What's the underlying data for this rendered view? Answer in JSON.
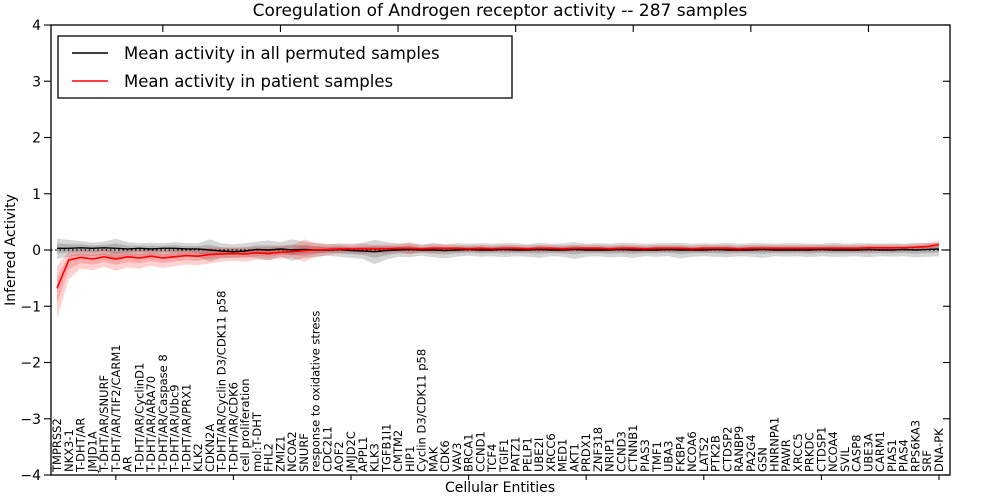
{
  "chart_data": {
    "type": "line",
    "title": "Coregulation of Androgen receptor activity -- 287 samples",
    "xlabel": "Cellular Entities",
    "ylabel": "Inferred Activity",
    "ylim": [
      -4,
      4
    ],
    "yticks": [
      -4,
      -3,
      -2,
      -1,
      0,
      1,
      2,
      3,
      4
    ],
    "grid": false,
    "legend_position": "upper left",
    "zero_line": {
      "style": "dotted",
      "color": "#000000",
      "y": 0
    },
    "categories": [
      "TMPRSS2",
      "NKX3-1",
      "T-DHT/AR",
      "JMJD1A",
      "T-DHT/AR/SNURF",
      "T-DHT/AR/TIF2/CARM1",
      "AR",
      "T-DHT/AR/CyclinD1",
      "T-DHT/AR/ARA70",
      "T-DHT/AR/Caspase 8",
      "T-DHT/AR/Ubc9",
      "T-DHT/AR/PRX1",
      "KLK2",
      "CDKN2A",
      "T-DHT/AR/Cyclin D3/CDK11 p58",
      "T-DHT/AR/CDK6",
      "cell proliferation",
      "mol:T-DHT",
      "FHL2",
      "ZMIZ1",
      "NCOA2",
      "SNURF",
      "response to oxidative stress",
      "CDC2L1",
      "AOF2",
      "JMJD2C",
      "APPL1",
      "KLK3",
      "TGFB1I1",
      "CMTM2",
      "HIP1",
      "Cyclin D3/CDK11 p58",
      "MAK",
      "CDK6",
      "VAV3",
      "BRCA1",
      "CCND1",
      "TCF4",
      "TGIF1",
      "PATZ1",
      "PELP1",
      "UBE2I",
      "XRCC6",
      "MED1",
      "AKT1",
      "PRDX1",
      "ZNF318",
      "NRIP1",
      "CCND3",
      "CTNNB1",
      "PIAS3",
      "TMF1",
      "UBA3",
      "FKBP4",
      "NCOA6",
      "LATS2",
      "PTK2B",
      "CTDSP2",
      "RANBP9",
      "PA2G4",
      "GSN",
      "HNRNPA1",
      "PAWR",
      "XRCC5",
      "PRKDC",
      "CTDSP1",
      "NCOA4",
      "SVIL",
      "CASP8",
      "UBE3A",
      "CARM1",
      "PIAS1",
      "PIAS4",
      "RPS6KA3",
      "SRF",
      "DNA-PK"
    ],
    "series": [
      {
        "name": "Mean activity in all permuted samples",
        "color": "#000000",
        "band_color_rgb": "0,0,0",
        "band_alpha": 0.16,
        "values": [
          0.03,
          0.03,
          0.04,
          0.03,
          0.04,
          0.03,
          0.02,
          0.03,
          0.02,
          0.03,
          0.03,
          0.02,
          0.02,
          0.0,
          -0.02,
          -0.03,
          -0.02,
          0.01,
          0.0,
          0.02,
          0.0,
          0.01,
          0.0,
          0.0,
          0.01,
          -0.01,
          -0.02,
          -0.03,
          -0.01,
          0.0,
          0.01,
          0.0,
          0.0,
          -0.01,
          0.0,
          0.01,
          0.0,
          0.0,
          0.01,
          0.0,
          0.0,
          0.01,
          0.0,
          0.0,
          0.01,
          0.0,
          0.0,
          0.0,
          0.01,
          0.0,
          0.0,
          0.0,
          0.01,
          0.0,
          0.0,
          0.0,
          0.01,
          0.0,
          0.0,
          0.0,
          0.01,
          0.0,
          0.0,
          0.0,
          0.0,
          0.01,
          0.0,
          0.0,
          0.0,
          0.01,
          0.0,
          0.0,
          0.01,
          0.0,
          0.01,
          0.02
        ],
        "band_low": [
          -0.16,
          -0.12,
          -0.1,
          -0.11,
          -0.09,
          -0.18,
          -0.12,
          -0.1,
          -0.11,
          -0.1,
          -0.12,
          -0.1,
          -0.12,
          -0.21,
          -0.14,
          -0.15,
          -0.12,
          -0.15,
          -0.18,
          -0.12,
          -0.19,
          -0.14,
          -0.12,
          -0.1,
          -0.12,
          -0.14,
          -0.16,
          -0.25,
          -0.17,
          -0.12,
          -0.13,
          -0.1,
          -0.13,
          -0.15,
          -0.12,
          -0.1,
          -0.12,
          -0.11,
          -0.13,
          -0.11,
          -0.12,
          -0.14,
          -0.11,
          -0.12,
          -0.16,
          -0.12,
          -0.11,
          -0.13,
          -0.12,
          -0.14,
          -0.11,
          -0.12,
          -0.11,
          -0.15,
          -0.12,
          -0.11,
          -0.12,
          -0.13,
          -0.11,
          -0.12,
          -0.14,
          -0.11,
          -0.12,
          -0.11,
          -0.13,
          -0.11,
          -0.12,
          -0.12,
          -0.11,
          -0.13,
          -0.11,
          -0.12,
          -0.11,
          -0.13,
          -0.12,
          -0.11
        ],
        "band_high": [
          0.2,
          0.18,
          0.16,
          0.13,
          0.15,
          0.2,
          0.14,
          0.12,
          0.13,
          0.12,
          0.14,
          0.12,
          0.12,
          0.19,
          0.12,
          0.1,
          0.12,
          0.15,
          0.17,
          0.14,
          0.19,
          0.15,
          0.12,
          0.1,
          0.12,
          0.11,
          0.13,
          0.18,
          0.14,
          0.12,
          0.12,
          0.1,
          0.12,
          0.1,
          0.12,
          0.11,
          0.12,
          0.11,
          0.12,
          0.12,
          0.1,
          0.13,
          0.11,
          0.12,
          0.14,
          0.11,
          0.12,
          0.11,
          0.13,
          0.12,
          0.11,
          0.12,
          0.12,
          0.13,
          0.11,
          0.12,
          0.11,
          0.13,
          0.11,
          0.12,
          0.12,
          0.11,
          0.12,
          0.12,
          0.11,
          0.11,
          0.13,
          0.11,
          0.12,
          0.12,
          0.11,
          0.12,
          0.11,
          0.12,
          0.13,
          0.12
        ]
      },
      {
        "name": "Mean activity in patient samples",
        "color": "#ff0000",
        "band_color_rgb": "255,0,0",
        "band_alpha": 0.18,
        "values": [
          -0.68,
          -0.18,
          -0.13,
          -0.16,
          -0.12,
          -0.16,
          -0.12,
          -0.14,
          -0.11,
          -0.14,
          -0.12,
          -0.1,
          -0.11,
          -0.08,
          -0.07,
          -0.06,
          -0.07,
          -0.05,
          -0.06,
          -0.04,
          -0.03,
          -0.01,
          0.0,
          0.01,
          0.02,
          0.02,
          0.02,
          0.02,
          0.02,
          0.03,
          0.03,
          0.02,
          0.03,
          0.03,
          0.03,
          0.02,
          0.03,
          0.02,
          0.03,
          0.03,
          0.02,
          0.03,
          0.03,
          0.02,
          0.03,
          0.03,
          0.03,
          0.02,
          0.03,
          0.03,
          0.02,
          0.03,
          0.03,
          0.03,
          0.02,
          0.03,
          0.03,
          0.03,
          0.02,
          0.03,
          0.03,
          0.03,
          0.03,
          0.03,
          0.03,
          0.03,
          0.03,
          0.03,
          0.03,
          0.04,
          0.04,
          0.04,
          0.04,
          0.05,
          0.06,
          0.1
        ],
        "band_low": [
          -1.22,
          -0.52,
          -0.33,
          -0.36,
          -0.3,
          -0.37,
          -0.31,
          -0.33,
          -0.28,
          -0.32,
          -0.29,
          -0.26,
          -0.27,
          -0.24,
          -0.21,
          -0.19,
          -0.21,
          -0.17,
          -0.18,
          -0.15,
          -0.14,
          -0.21,
          -0.13,
          -0.09,
          -0.06,
          -0.05,
          -0.07,
          -0.05,
          -0.06,
          -0.04,
          -0.08,
          -0.04,
          -0.05,
          -0.04,
          -0.04,
          -0.03,
          -0.04,
          -0.03,
          -0.03,
          -0.04,
          -0.03,
          -0.04,
          -0.03,
          -0.04,
          -0.03,
          -0.03,
          -0.04,
          -0.03,
          -0.03,
          -0.04,
          -0.03,
          -0.03,
          -0.04,
          -0.03,
          -0.03,
          -0.04,
          -0.03,
          -0.03,
          -0.04,
          -0.03,
          -0.03,
          -0.04,
          -0.03,
          -0.03,
          -0.04,
          -0.03,
          -0.03,
          -0.03,
          -0.04,
          -0.03,
          -0.02,
          -0.03,
          -0.02,
          -0.01,
          0.0,
          0.02
        ],
        "band_high": [
          -0.28,
          -0.03,
          0.0,
          -0.02,
          0.01,
          -0.02,
          0.0,
          -0.01,
          0.01,
          -0.01,
          0.01,
          0.02,
          0.02,
          0.04,
          0.04,
          0.05,
          0.04,
          0.05,
          0.05,
          0.06,
          0.08,
          0.19,
          0.13,
          0.11,
          0.1,
          0.09,
          0.11,
          0.09,
          0.1,
          0.1,
          0.14,
          0.08,
          0.11,
          0.1,
          0.09,
          0.08,
          0.09,
          0.08,
          0.09,
          0.09,
          0.08,
          0.09,
          0.09,
          0.08,
          0.09,
          0.09,
          0.09,
          0.08,
          0.09,
          0.09,
          0.08,
          0.09,
          0.09,
          0.09,
          0.08,
          0.09,
          0.09,
          0.09,
          0.08,
          0.09,
          0.09,
          0.09,
          0.09,
          0.09,
          0.09,
          0.09,
          0.09,
          0.09,
          0.09,
          0.1,
          0.1,
          0.1,
          0.1,
          0.11,
          0.12,
          0.17
        ]
      }
    ]
  }
}
